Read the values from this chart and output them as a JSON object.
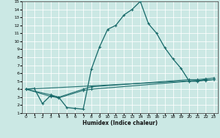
{
  "xlabel": "Humidex (Indice chaleur)",
  "bg_color": "#cbe8e4",
  "grid_color": "#ffffff",
  "line_color": "#1a6b6b",
  "xlim": [
    -0.5,
    23.5
  ],
  "ylim": [
    1,
    15
  ],
  "xticks": [
    0,
    1,
    2,
    3,
    4,
    5,
    6,
    7,
    8,
    9,
    10,
    11,
    12,
    13,
    14,
    15,
    16,
    17,
    18,
    19,
    20,
    21,
    22,
    23
  ],
  "yticks": [
    1,
    2,
    3,
    4,
    5,
    6,
    7,
    8,
    9,
    10,
    11,
    12,
    13,
    14,
    15
  ],
  "series": [
    {
      "x": [
        0,
        1,
        2,
        3,
        4,
        5,
        6,
        7,
        8,
        9,
        10,
        11,
        12,
        13,
        14,
        15,
        16,
        17,
        18,
        19,
        20,
        21,
        22
      ],
      "y": [
        4.0,
        4.1,
        2.2,
        3.2,
        3.0,
        1.7,
        1.6,
        1.5,
        6.5,
        9.3,
        11.5,
        12.0,
        13.3,
        14.0,
        15.0,
        12.2,
        11.0,
        9.2,
        7.8,
        6.6,
        5.0,
        5.0,
        5.2
      ]
    },
    {
      "x": [
        0,
        23
      ],
      "y": [
        4.0,
        5.2
      ]
    },
    {
      "x": [
        0,
        3,
        4,
        7,
        8,
        20,
        21,
        22,
        23
      ],
      "y": [
        4.0,
        3.3,
        3.0,
        4.0,
        4.3,
        5.2,
        5.2,
        5.3,
        5.4
      ]
    },
    {
      "x": [
        0,
        3,
        4,
        7,
        8,
        20,
        21,
        22,
        23
      ],
      "y": [
        4.0,
        3.1,
        2.9,
        3.85,
        4.0,
        5.0,
        5.0,
        5.1,
        5.2
      ]
    }
  ]
}
